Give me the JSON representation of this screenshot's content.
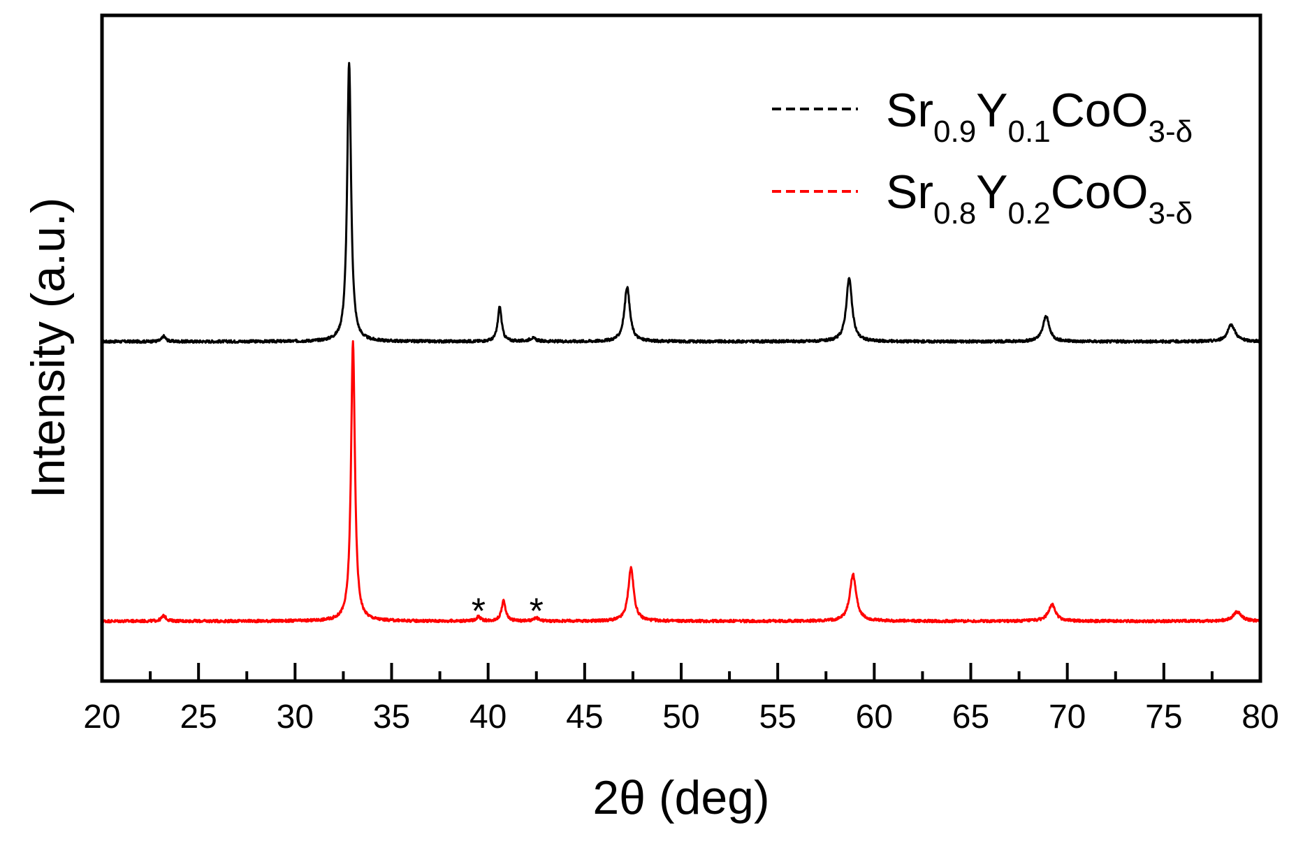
{
  "chart_data": {
    "type": "line",
    "xlabel": "2θ (deg)",
    "ylabel": "Intensity (a.u.)",
    "xlim": [
      20,
      80
    ],
    "xticks": [
      20,
      25,
      30,
      35,
      40,
      45,
      50,
      55,
      60,
      65,
      70,
      75,
      80
    ],
    "ylim": [
      0,
      1
    ],
    "yticks": [],
    "grid": false,
    "legend_position": "top-right",
    "series": [
      {
        "name": "Sr0.9Y0.1CoO3-δ",
        "legend": {
          "el1": "Sr",
          "s1": "0.9",
          "el2": "Y",
          "s2": "0.1",
          "el3": "CoO",
          "s3": "3-δ"
        },
        "color": "#000000",
        "baseline": 0.51,
        "peaks": [
          {
            "x": 23.2,
            "height": 0.008,
            "width": 0.12
          },
          {
            "x": 32.8,
            "height": 0.42,
            "width": 0.12
          },
          {
            "x": 40.6,
            "height": 0.052,
            "width": 0.12
          },
          {
            "x": 42.3,
            "height": 0.005,
            "width": 0.2
          },
          {
            "x": 47.2,
            "height": 0.082,
            "width": 0.17
          },
          {
            "x": 58.7,
            "height": 0.095,
            "width": 0.18
          },
          {
            "x": 68.9,
            "height": 0.038,
            "width": 0.2
          },
          {
            "x": 78.5,
            "height": 0.025,
            "width": 0.24
          }
        ]
      },
      {
        "name": "Sr0.8Y0.2CoO3-δ",
        "legend": {
          "el1": "Sr",
          "s1": "0.8",
          "el2": "Y",
          "s2": "0.2",
          "el3": "CoO",
          "s3": "3-δ"
        },
        "color": "#ff0000",
        "baseline": 0.09,
        "peaks": [
          {
            "x": 23.2,
            "height": 0.008,
            "width": 0.14
          },
          {
            "x": 33.0,
            "height": 0.42,
            "width": 0.12
          },
          {
            "x": 39.5,
            "height": 0.007,
            "width": 0.12
          },
          {
            "x": 40.8,
            "height": 0.03,
            "width": 0.13
          },
          {
            "x": 42.5,
            "height": 0.005,
            "width": 0.12
          },
          {
            "x": 47.4,
            "height": 0.08,
            "width": 0.17
          },
          {
            "x": 58.9,
            "height": 0.07,
            "width": 0.2
          },
          {
            "x": 69.2,
            "height": 0.025,
            "width": 0.22
          },
          {
            "x": 78.8,
            "height": 0.014,
            "width": 0.26
          }
        ]
      }
    ],
    "annotations": [
      {
        "text": "*",
        "x": 39.5,
        "y": 0.118
      },
      {
        "text": "*",
        "x": 42.5,
        "y": 0.118
      }
    ]
  }
}
